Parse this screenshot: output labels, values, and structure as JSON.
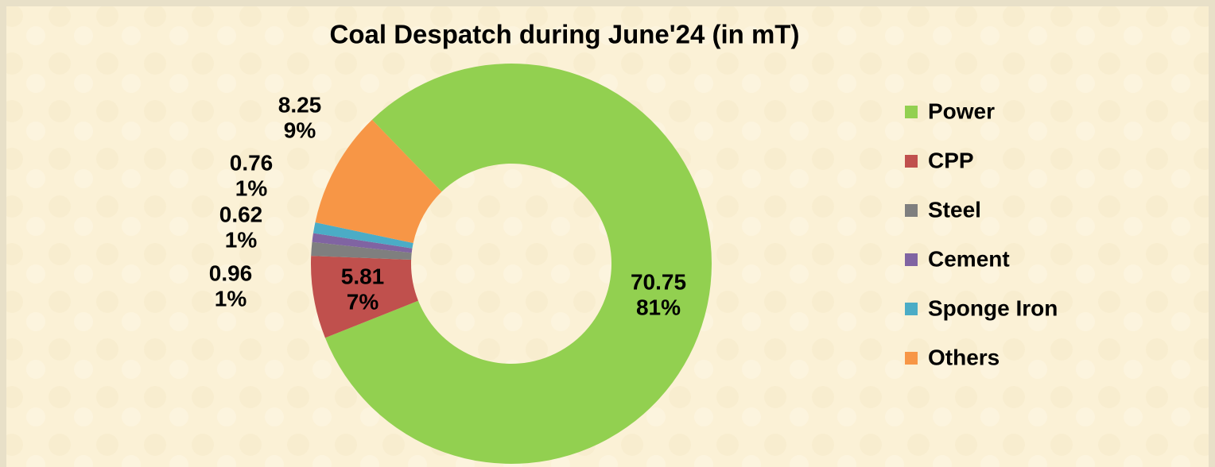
{
  "chart_data": {
    "type": "donut",
    "title": "Coal Despatch during June'24 (in mT)",
    "categories": [
      "Power",
      "CPP",
      "Steel",
      "Cement",
      "Sponge Iron",
      "Others"
    ],
    "values": [
      70.75,
      5.81,
      0.96,
      0.62,
      0.76,
      8.25
    ],
    "percent_labels": [
      "81%",
      "7%",
      "1%",
      "1%",
      "1%",
      "9%"
    ],
    "colors": [
      "#92d050",
      "#c0504d",
      "#7f7f7f",
      "#8064a2",
      "#4bacc6",
      "#f79646"
    ],
    "legend": "right"
  }
}
